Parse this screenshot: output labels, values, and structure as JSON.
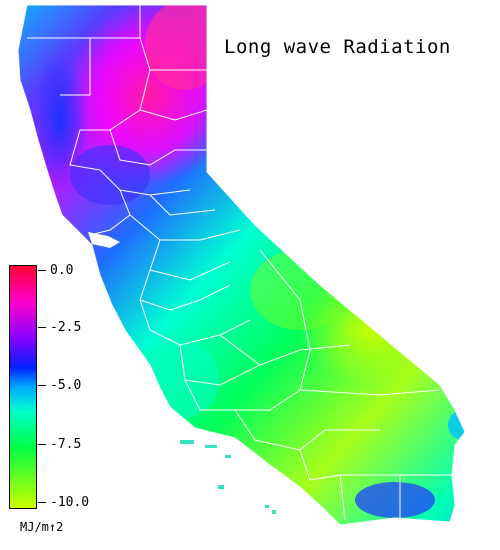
{
  "title": "Long wave Radiation",
  "legend": {
    "ticks": [
      "0.0",
      "-2.5",
      "-5.0",
      "-7.5",
      "-10.0"
    ],
    "unit": "MJ/m↑2",
    "stops": [
      {
        "value": 0.0,
        "color": "#ff0033"
      },
      {
        "value": -1.5,
        "color": "#ff00cc"
      },
      {
        "value": -3.0,
        "color": "#8800ff"
      },
      {
        "value": -4.2,
        "color": "#0022ff"
      },
      {
        "value": -5.0,
        "color": "#00aaff"
      },
      {
        "value": -6.0,
        "color": "#00ffcc"
      },
      {
        "value": -7.5,
        "color": "#00ff44"
      },
      {
        "value": -10.0,
        "color": "#ccff00"
      }
    ]
  }
}
